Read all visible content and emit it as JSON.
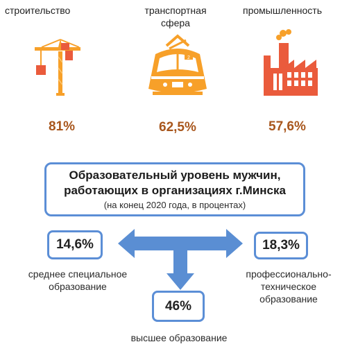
{
  "sectors": [
    {
      "label_lines": [
        "строительство"
      ],
      "value": "81%",
      "icon": "tower-crane-icon"
    },
    {
      "label_lines": [
        "транспортная",
        "сфера"
      ],
      "value": "62,5%",
      "icon": "tram-icon"
    },
    {
      "label_lines": [
        "промышленность"
      ],
      "value": "57,6%",
      "icon": "factory-icon"
    }
  ],
  "title": {
    "line1": "Образовательный уровень мужчин,",
    "line2": "работающих в организациях г.Минска",
    "subtitle": "(на конец 2020 года, в процентах)"
  },
  "education": [
    {
      "value": "14,6%",
      "caption_lines": [
        "среднее специальное",
        "образование"
      ]
    },
    {
      "value": "18,3%",
      "caption_lines": [
        "профессионально-",
        "техническое",
        "образование"
      ]
    },
    {
      "value": "46%",
      "caption_lines": [
        "высшее образование"
      ]
    }
  ],
  "colors": {
    "orange": "#f7a029",
    "red": "#ea5b3c",
    "accent_text": "#a8561c",
    "blue_border": "#5b8ed6",
    "arrow": "#5a8ed3"
  }
}
